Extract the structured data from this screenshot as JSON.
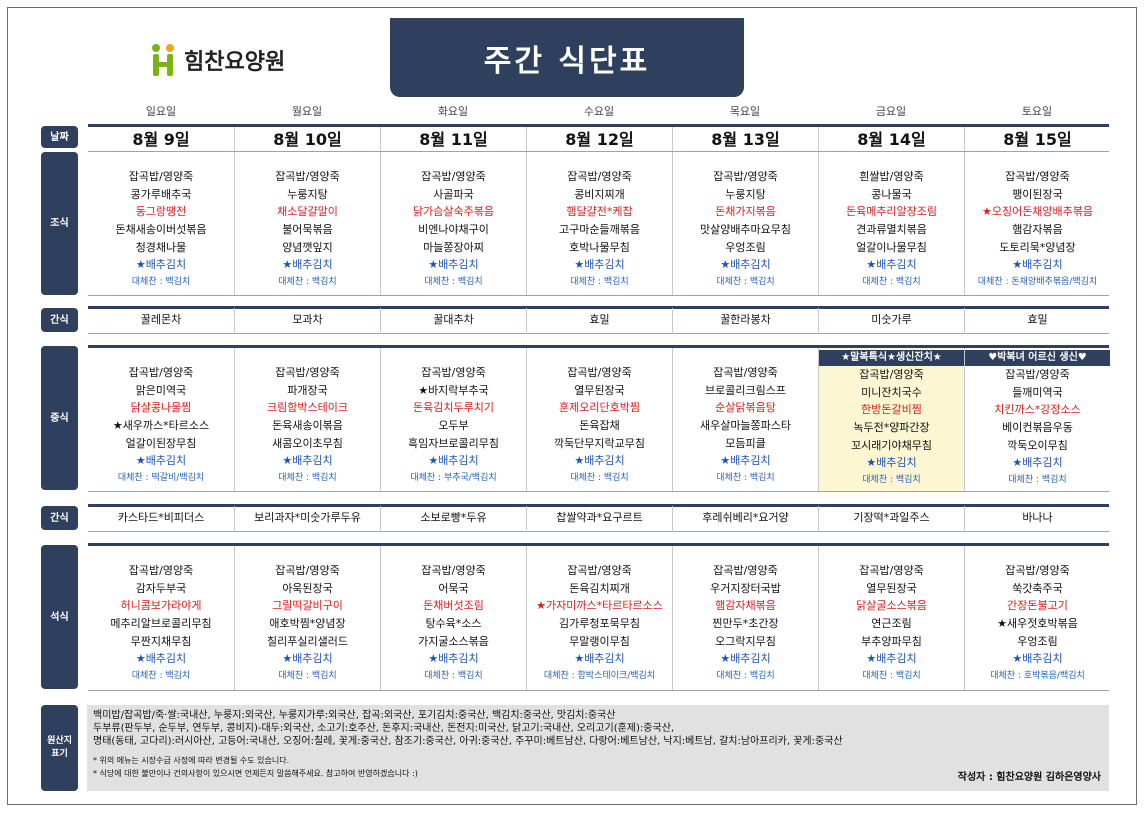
{
  "logo": {
    "text": "힘찬요양원",
    "color": "#7ab317"
  },
  "title": "주간 식단표",
  "days": [
    "일요일",
    "월요일",
    "화요일",
    "수요일",
    "목요일",
    "금요일",
    "토요일"
  ],
  "labels": {
    "date": "날짜",
    "breakfast": "조식",
    "snack1": "간식",
    "lunch": "중식",
    "snack2": "간식",
    "dinner": "석식",
    "origin": "원산지\n표기"
  },
  "dates": [
    "8월 9일",
    "8월 10일",
    "8월 11일",
    "8월 12일",
    "8월 13일",
    "8월 14일",
    "8월 15일"
  ],
  "breakfast": [
    {
      "items": [
        {
          "t": "잡곡밥/영양죽",
          "c": ""
        },
        {
          "t": "콩가루배추국",
          "c": ""
        },
        {
          "t": "동그랑땡전",
          "c": "red"
        },
        {
          "t": "돈채새송이버섯볶음",
          "c": ""
        },
        {
          "t": "청경채나물",
          "c": ""
        },
        {
          "t": "★배추김치",
          "c": "star"
        }
      ],
      "sub": "대체찬 : 백김치"
    },
    {
      "items": [
        {
          "t": "잡곡밥/영양죽",
          "c": ""
        },
        {
          "t": "누룽지탕",
          "c": ""
        },
        {
          "t": "채소달걀말이",
          "c": "red"
        },
        {
          "t": "불어묵볶음",
          "c": ""
        },
        {
          "t": "양념깻잎지",
          "c": ""
        },
        {
          "t": "★배추김치",
          "c": "star"
        }
      ],
      "sub": "대체찬 : 백김치"
    },
    {
      "items": [
        {
          "t": "잡곡밥/영양죽",
          "c": ""
        },
        {
          "t": "사골파국",
          "c": ""
        },
        {
          "t": "닭가슴살숙주볶음",
          "c": "red"
        },
        {
          "t": "비엔나야채구이",
          "c": ""
        },
        {
          "t": "마늘쫑장아찌",
          "c": ""
        },
        {
          "t": "★배추김치",
          "c": "star"
        }
      ],
      "sub": "대체찬 : 백김치"
    },
    {
      "items": [
        {
          "t": "잡곡밥/영양죽",
          "c": ""
        },
        {
          "t": "콩비지찌개",
          "c": ""
        },
        {
          "t": "햄달걀전*케찹",
          "c": "red"
        },
        {
          "t": "고구마순들깨볶음",
          "c": ""
        },
        {
          "t": "호박나물무침",
          "c": ""
        },
        {
          "t": "★배추김치",
          "c": "star"
        }
      ],
      "sub": "대체찬 : 백김치"
    },
    {
      "items": [
        {
          "t": "잡곡밥/영양죽",
          "c": ""
        },
        {
          "t": "누룽지탕",
          "c": ""
        },
        {
          "t": "돈채가지볶음",
          "c": "red"
        },
        {
          "t": "맛살양배추마요무침",
          "c": ""
        },
        {
          "t": "우엉조림",
          "c": ""
        },
        {
          "t": "★배추김치",
          "c": "star"
        }
      ],
      "sub": "대체찬 : 백김치"
    },
    {
      "items": [
        {
          "t": "흰쌀밥/영양죽",
          "c": ""
        },
        {
          "t": "콩나물국",
          "c": ""
        },
        {
          "t": "돈육메추리알장조림",
          "c": "red"
        },
        {
          "t": "견과류멸치볶음",
          "c": ""
        },
        {
          "t": "얼갈이나물무침",
          "c": ""
        },
        {
          "t": "★배추김치",
          "c": "star"
        }
      ],
      "sub": "대체찬 : 백김치"
    },
    {
      "items": [
        {
          "t": "잡곡밥/영양죽",
          "c": ""
        },
        {
          "t": "팽이된장국",
          "c": ""
        },
        {
          "t": "★오징어돈채양배추볶음",
          "c": "red"
        },
        {
          "t": "햄감자볶음",
          "c": ""
        },
        {
          "t": "도토리묵*양념장",
          "c": ""
        },
        {
          "t": "★배추김치",
          "c": "star"
        }
      ],
      "sub": "대체찬 : 돈채양배추볶음/백김치"
    }
  ],
  "snack1": [
    "꿀레몬차",
    "모과차",
    "꿀대추차",
    "효밀",
    "꿀한라봉차",
    "미숫가루",
    "효밀"
  ],
  "lunch": [
    {
      "banner": "",
      "items": [
        {
          "t": "잡곡밥/영양죽",
          "c": ""
        },
        {
          "t": "맑은미역국",
          "c": ""
        },
        {
          "t": "닭살콩나물찜",
          "c": "red"
        },
        {
          "t": "★새우까스*타르소스",
          "c": ""
        },
        {
          "t": "얼갈이된장무침",
          "c": ""
        },
        {
          "t": "★배추김치",
          "c": "star"
        }
      ],
      "sub": "대체찬 : 떡갈비/백김치"
    },
    {
      "banner": "",
      "items": [
        {
          "t": "잡곡밥/영양죽",
          "c": ""
        },
        {
          "t": "파개장국",
          "c": ""
        },
        {
          "t": "크림함박스테이크",
          "c": "red"
        },
        {
          "t": "돈육새송이볶음",
          "c": ""
        },
        {
          "t": "새콤오이초무침",
          "c": ""
        },
        {
          "t": "★배추김치",
          "c": "star"
        }
      ],
      "sub": "대체찬 : 백김치"
    },
    {
      "banner": "",
      "items": [
        {
          "t": "잡곡밥/영양죽",
          "c": ""
        },
        {
          "t": "★바지락부추국",
          "c": ""
        },
        {
          "t": "돈육김치두루치기",
          "c": "red"
        },
        {
          "t": "오두부",
          "c": ""
        },
        {
          "t": "흑임자브로콜리무침",
          "c": ""
        },
        {
          "t": "★배추김치",
          "c": "star"
        }
      ],
      "sub": "대체찬 : 부추국/백김치"
    },
    {
      "banner": "",
      "items": [
        {
          "t": "잡곡밥/영양죽",
          "c": ""
        },
        {
          "t": "열무된장국",
          "c": ""
        },
        {
          "t": "훈제오리단호박찜",
          "c": "red"
        },
        {
          "t": "돈육잡채",
          "c": ""
        },
        {
          "t": "깍둑단무지락교무침",
          "c": ""
        },
        {
          "t": "★배추김치",
          "c": "star"
        }
      ],
      "sub": "대체찬 : 백김치"
    },
    {
      "banner": "",
      "items": [
        {
          "t": "잡곡밥/영양죽",
          "c": ""
        },
        {
          "t": "브로콜리크림스프",
          "c": ""
        },
        {
          "t": "순살닭볶음탕",
          "c": "red"
        },
        {
          "t": "새우살마늘쫑파스타",
          "c": ""
        },
        {
          "t": "모듬피클",
          "c": ""
        },
        {
          "t": "★배추김치",
          "c": "star"
        }
      ],
      "sub": "대체찬 : 백김치"
    },
    {
      "banner": "★말복특식★생신잔치★",
      "items": [
        {
          "t": "잡곡밥/영양죽",
          "c": ""
        },
        {
          "t": "미니잔치국수",
          "c": ""
        },
        {
          "t": "한방돈갈비찜",
          "c": "red"
        },
        {
          "t": "녹두전*양파간장",
          "c": ""
        },
        {
          "t": "꼬시래기야채무침",
          "c": ""
        },
        {
          "t": "★배추김치",
          "c": "star"
        }
      ],
      "sub": "대체찬 : 백김치"
    },
    {
      "banner": "♥박복녀 어르신 생신♥",
      "items": [
        {
          "t": "잡곡밥/영양죽",
          "c": ""
        },
        {
          "t": "들깨미역국",
          "c": ""
        },
        {
          "t": "치킨까스*강정소스",
          "c": "red"
        },
        {
          "t": "베이컨볶음우동",
          "c": ""
        },
        {
          "t": "깍둑오이무침",
          "c": ""
        },
        {
          "t": "★배추김치",
          "c": "star"
        }
      ],
      "sub": "대체찬 : 백김치"
    }
  ],
  "snack2": [
    "카스타드*비피더스",
    "보리과자*미숫가루두유",
    "소보로빵*두유",
    "찹쌀약과*요구르트",
    "후레쉬베리*요거양",
    "기장떡*과일주스",
    "바나나"
  ],
  "dinner": [
    {
      "items": [
        {
          "t": "잡곡밥/영양죽",
          "c": ""
        },
        {
          "t": "감자두부국",
          "c": ""
        },
        {
          "t": "허니콤보가라야게",
          "c": "red"
        },
        {
          "t": "메추리알브로콜리무침",
          "c": ""
        },
        {
          "t": "무짠지채무침",
          "c": ""
        },
        {
          "t": "★배추김치",
          "c": "star"
        }
      ],
      "sub": "대체찬 : 백김치"
    },
    {
      "items": [
        {
          "t": "잡곡밥/영양죽",
          "c": ""
        },
        {
          "t": "아욱된장국",
          "c": ""
        },
        {
          "t": "그릴떡갈비구이",
          "c": "red"
        },
        {
          "t": "애호박찜*양념장",
          "c": ""
        },
        {
          "t": "칠리푸실리샐러드",
          "c": ""
        },
        {
          "t": "★배추김치",
          "c": "star"
        }
      ],
      "sub": "대체찬 : 백김치"
    },
    {
      "items": [
        {
          "t": "잡곡밥/영양죽",
          "c": ""
        },
        {
          "t": "어묵국",
          "c": ""
        },
        {
          "t": "돈채버섯조림",
          "c": "red"
        },
        {
          "t": "탕수육*소스",
          "c": ""
        },
        {
          "t": "가지굴소스볶음",
          "c": ""
        },
        {
          "t": "★배추김치",
          "c": "star"
        }
      ],
      "sub": "대체찬 : 백김치"
    },
    {
      "items": [
        {
          "t": "잡곡밥/영양죽",
          "c": ""
        },
        {
          "t": "돈육김치찌개",
          "c": ""
        },
        {
          "t": "★가자미까스*타르타르소스",
          "c": "red"
        },
        {
          "t": "김가루청포묵무침",
          "c": ""
        },
        {
          "t": "무말랭이무침",
          "c": ""
        },
        {
          "t": "★배추김치",
          "c": "star"
        }
      ],
      "sub": "대체찬 : 함박스테이크/백김치"
    },
    {
      "items": [
        {
          "t": "잡곡밥/영양죽",
          "c": ""
        },
        {
          "t": "우거지장터국밥",
          "c": ""
        },
        {
          "t": "햄감자채볶음",
          "c": "red"
        },
        {
          "t": "찐만두*초간장",
          "c": ""
        },
        {
          "t": "오그락지무침",
          "c": ""
        },
        {
          "t": "★배추김치",
          "c": "star"
        }
      ],
      "sub": "대체찬 : 백김치"
    },
    {
      "items": [
        {
          "t": "잡곡밥/영양죽",
          "c": ""
        },
        {
          "t": "열무된장국",
          "c": ""
        },
        {
          "t": "닭살굴소스볶음",
          "c": "red"
        },
        {
          "t": "연근조림",
          "c": ""
        },
        {
          "t": "부추양파무침",
          "c": ""
        },
        {
          "t": "★배추김치",
          "c": "star"
        }
      ],
      "sub": "대체찬 : 백김치"
    },
    {
      "items": [
        {
          "t": "잡곡밥/영양죽",
          "c": ""
        },
        {
          "t": "쑥갓축주국",
          "c": ""
        },
        {
          "t": "간장돈불고기",
          "c": "red"
        },
        {
          "t": "★새우젓호박볶음",
          "c": ""
        },
        {
          "t": "우엉조림",
          "c": ""
        },
        {
          "t": "★배추김치",
          "c": "star"
        }
      ],
      "sub": "대체찬 : 호박볶음/백김치"
    }
  ],
  "origin": {
    "lines": [
      "백미밥/잡곡밥/죽·쌀:국내산, 누룽지:외국산, 누룽지가루:외국산, 잡곡:외국산, 포기김치:중국산, 백김치:중국산, 맛김치:중국산",
      "두부류(판두부, 순두부, 연두부, 콩비지)-대두:외국산, 소고기:호주산, 돈후지:국내산, 돈전지:미국산, 닭고기:국내산, 오리고기(훈제):중국산,",
      "명태(동태, 고다리):러시아산, 고등어:국내산, 오징어:칠레, 꽃게:중국산, 참조기:중국산, 아귀:중국산, 주꾸미:베트남산, 다랑어:베트남산, 낙지:베트남, 갈치:남아프리카, 꽃게:중국산"
    ],
    "notes": [
      "* 위의 메뉴는 시장수급 사정에 따라 변경될 수도 있습니다.",
      "* 식당에 대한 불만이나 건의사항이 있으시면 언제든지 말씀해주세요. 참고하여 반영하겠습니다 :)"
    ],
    "author": "작성자 : 힘찬요양원 김하은영양사"
  },
  "colors": {
    "navy": "#2f3f5e",
    "red": "#e01b1b",
    "blue": "#1d53b6",
    "highlight": "#fdf6d3"
  }
}
